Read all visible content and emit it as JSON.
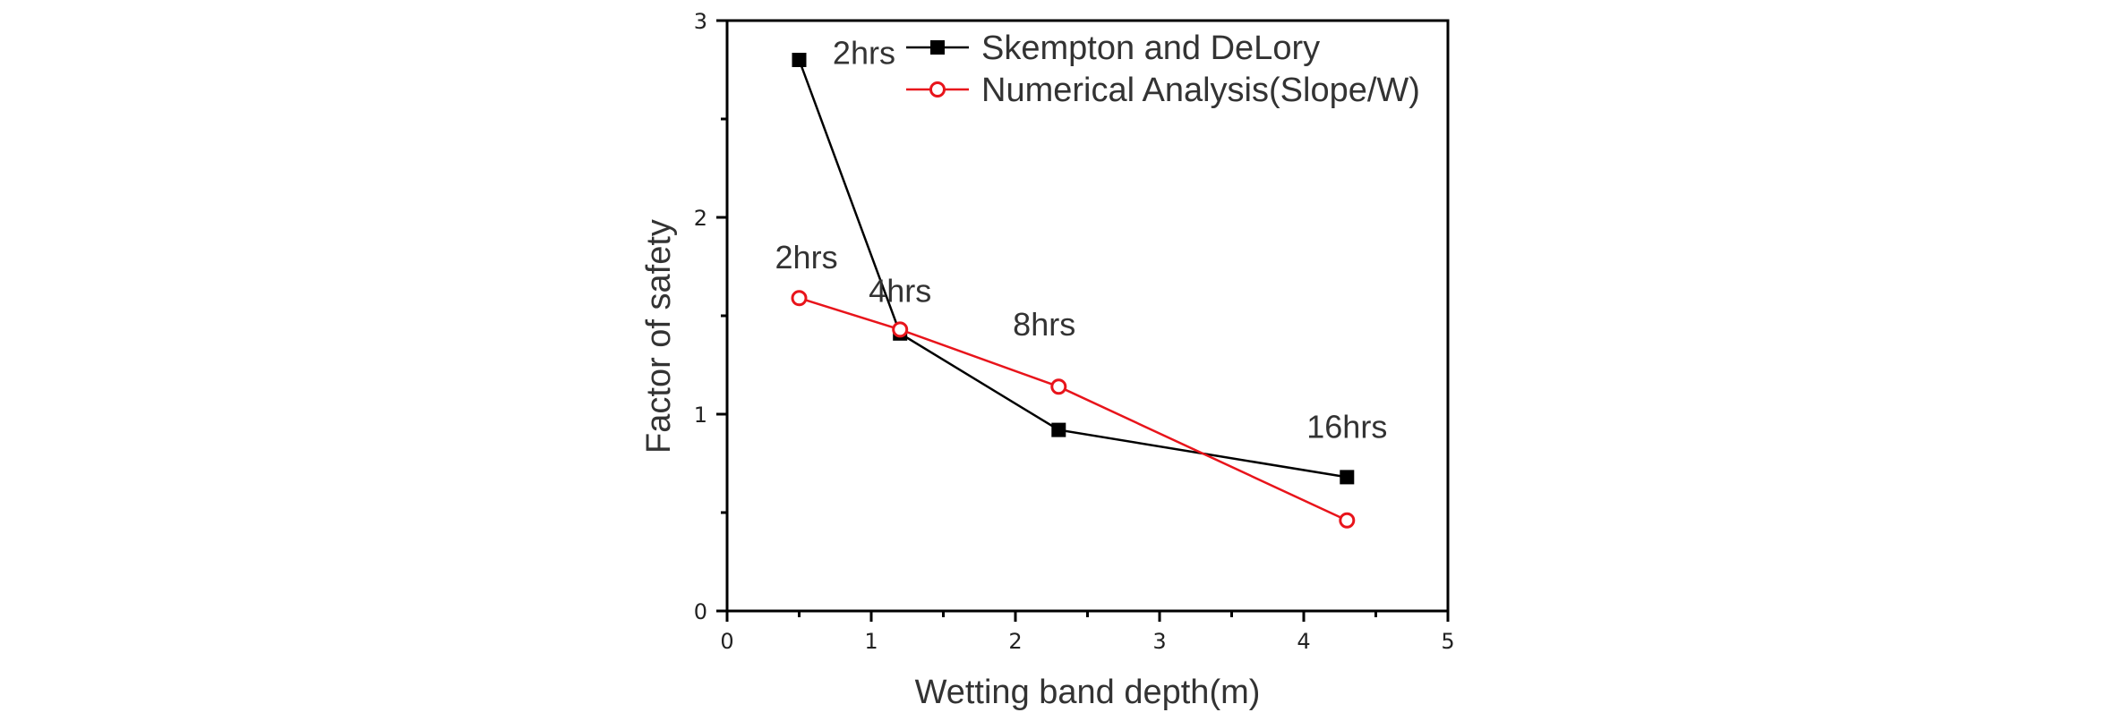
{
  "chart_data": {
    "type": "line",
    "xlabel": "Wetting band depth(m)",
    "ylabel": "Factor of safety",
    "xlim": [
      0,
      5
    ],
    "ylim": [
      0,
      3
    ],
    "x_ticks": [
      "0",
      "1",
      "2",
      "3",
      "4",
      "5"
    ],
    "y_ticks": [
      "0",
      "1",
      "2",
      "3"
    ],
    "grid": false,
    "legend_position": "top-right",
    "series": [
      {
        "name": "Skempton and DeLory",
        "color": "#000000",
        "marker": "filled-square",
        "x": [
          0.5,
          1.2,
          2.3,
          4.3
        ],
        "y": [
          2.8,
          1.41,
          0.92,
          0.68
        ]
      },
      {
        "name": "Numerical Analysis(Slope/W)",
        "color": "#e8141b",
        "marker": "open-circle",
        "x": [
          0.5,
          1.2,
          2.3,
          4.3
        ],
        "y": [
          1.59,
          1.43,
          1.14,
          0.46
        ]
      }
    ],
    "annotations": [
      {
        "text": "2hrs",
        "x": 0.95,
        "y": 2.78
      },
      {
        "text": "2hrs",
        "x": 0.55,
        "y": 1.74
      },
      {
        "text": "4hrs",
        "x": 1.2,
        "y": 1.57
      },
      {
        "text": "8hrs",
        "x": 2.2,
        "y": 1.4
      },
      {
        "text": "16hrs",
        "x": 4.3,
        "y": 0.88
      }
    ]
  }
}
